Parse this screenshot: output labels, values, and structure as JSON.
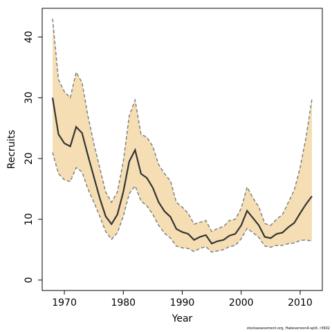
{
  "chart_data": {
    "type": "line",
    "x_label": "Year",
    "y_label": "Recruits",
    "footnote": "stockassessment.org, Hakeversion4-split, r3602",
    "x": [
      1968,
      1969,
      1970,
      1971,
      1972,
      1973,
      1974,
      1975,
      1976,
      1977,
      1978,
      1979,
      1980,
      1981,
      1982,
      1983,
      1984,
      1985,
      1986,
      1987,
      1988,
      1989,
      1990,
      1991,
      1992,
      1993,
      1994,
      1995,
      1996,
      1997,
      1998,
      1999,
      2000,
      2001,
      2002,
      2003,
      2004,
      2005,
      2006,
      2007,
      2008,
      2009,
      2010,
      2011,
      2012
    ],
    "values": [
      30,
      24,
      22.5,
      22,
      25.2,
      24.2,
      20.5,
      17,
      13.5,
      10.5,
      9.2,
      10.8,
      14.5,
      19.5,
      21.4,
      17.5,
      16.8,
      15.2,
      12.8,
      11.3,
      10.4,
      8.4,
      7.9,
      7.6,
      6.6,
      7.1,
      7.4,
      6.0,
      6.4,
      6.6,
      7.3,
      7.6,
      9.0,
      11.4,
      10.2,
      9.0,
      7.1,
      6.9,
      7.6,
      7.8,
      8.7,
      9.4,
      11.0,
      12.5,
      13.8
    ],
    "color": "#333333",
    "band": {
      "upper": [
        43,
        33,
        31,
        30,
        34.2,
        32.5,
        27,
        22.5,
        18.5,
        14.5,
        12.8,
        14.5,
        19.5,
        27,
        29.6,
        24,
        23.5,
        22,
        19,
        17.5,
        16.3,
        12.8,
        12,
        11,
        9.2,
        9.5,
        9.8,
        8.0,
        8.5,
        8.8,
        9.8,
        10,
        11.8,
        15.3,
        13.5,
        12,
        9.3,
        9.0,
        10,
        10.8,
        12.8,
        14.8,
        18.5,
        23.5,
        29.8
      ],
      "lower": [
        21,
        17.5,
        16.5,
        16.2,
        18.5,
        17.8,
        15,
        12.8,
        10.5,
        8,
        6.7,
        7.8,
        10.5,
        14.2,
        15.5,
        13,
        12.2,
        10.8,
        9,
        7.7,
        6.9,
        5.6,
        5.3,
        5.2,
        4.7,
        5.2,
        5.5,
        4.6,
        4.8,
        5.0,
        5.5,
        5.7,
        6.8,
        8.5,
        7.8,
        7.0,
        5.6,
        5.4,
        5.7,
        5.7,
        6.0,
        6.1,
        6.5,
        6.6,
        6.4
      ],
      "fill": "#f5deb3",
      "edge_color": "#808080"
    },
    "xlim": [
      1966.24,
      2013.76
    ],
    "ylim": [
      -1.72,
      44.72
    ],
    "xticks": [
      1970,
      1980,
      1990,
      2000,
      2010
    ],
    "yticks": [
      0,
      10,
      20,
      30,
      40
    ]
  }
}
